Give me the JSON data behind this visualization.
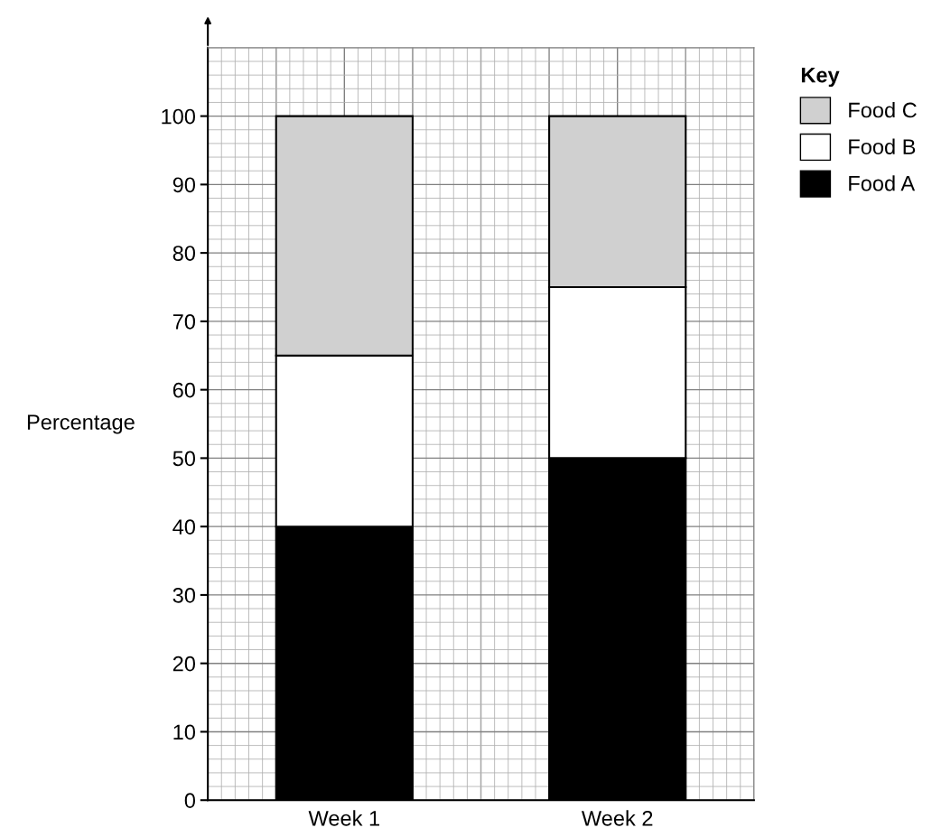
{
  "chart_data": {
    "type": "bar",
    "stacked": true,
    "ylabel": "Percentage",
    "legend_title": "Key",
    "legend": "top right",
    "categories": [
      "Week 1",
      "Week 2"
    ],
    "series": [
      {
        "name": "Food A",
        "color": "#000000",
        "values": [
          40,
          50
        ]
      },
      {
        "name": "Food B",
        "color": "#ffffff",
        "values": [
          25,
          25
        ]
      },
      {
        "name": "Food C",
        "color": "#d0d0d0",
        "values": [
          35,
          25
        ]
      }
    ],
    "ylim": [
      0,
      110
    ],
    "yticks": [
      0,
      10,
      20,
      30,
      40,
      50,
      60,
      70,
      80,
      90,
      100
    ],
    "grid": true
  }
}
